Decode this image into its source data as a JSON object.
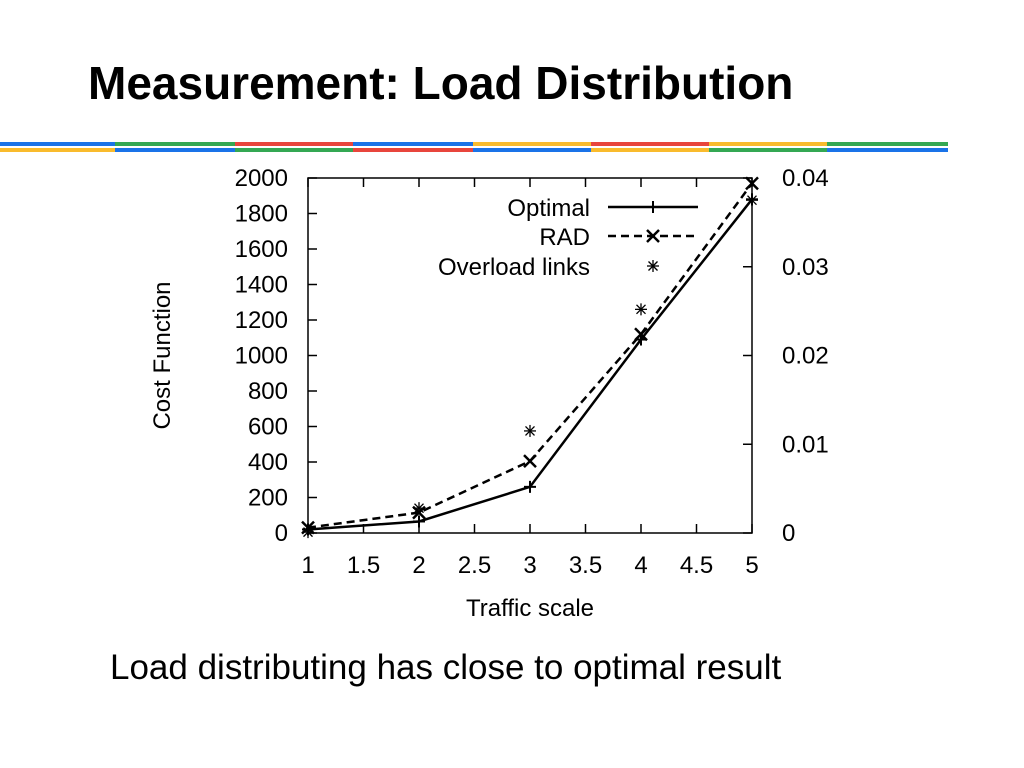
{
  "slide": {
    "title": "Measurement: Load Distribution",
    "caption": "Load distributing has close to optimal result"
  },
  "colors": {
    "stripe_blue": "#1a73e8",
    "stripe_red": "#e8453c",
    "stripe_yellow": "#f9bb2d",
    "stripe_green": "#34a853",
    "ink": "#000000"
  },
  "chart_data": {
    "type": "line",
    "xlabel": "Traffic scale",
    "ylabel": "Cost Function",
    "xlim": [
      1,
      5
    ],
    "ylim": [
      0,
      2000
    ],
    "y2lim": [
      0,
      0.04
    ],
    "x_ticks": [
      "1",
      "1.5",
      "2",
      "2.5",
      "3",
      "3.5",
      "4",
      "4.5",
      "5"
    ],
    "y_ticks": [
      "0",
      "200",
      "400",
      "600",
      "800",
      "1000",
      "1200",
      "1400",
      "1600",
      "1800",
      "2000"
    ],
    "y2_ticks": [
      "0",
      "0.01",
      "0.02",
      "0.03",
      "0.04"
    ],
    "legend_position": "top-right",
    "series": [
      {
        "name": "Optimal",
        "axis": "left",
        "style": "solid",
        "marker": "plus",
        "x": [
          1,
          2,
          3,
          4,
          5
        ],
        "y": [
          20,
          65,
          260,
          1090,
          1880
        ]
      },
      {
        "name": "RAD",
        "axis": "left",
        "style": "dashed",
        "marker": "cross",
        "x": [
          1,
          2,
          3,
          4,
          5
        ],
        "y": [
          30,
          115,
          405,
          1120,
          1970
        ]
      },
      {
        "name": "Overload links",
        "axis": "right",
        "style": "points",
        "marker": "star",
        "x": [
          1,
          2,
          3,
          4,
          5
        ],
        "y": [
          0.0001,
          0.0028,
          0.0115,
          0.0252,
          0.0375
        ]
      }
    ]
  }
}
